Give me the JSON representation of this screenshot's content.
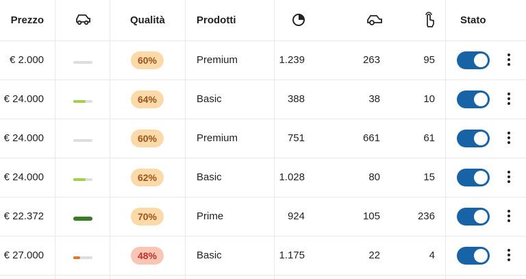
{
  "header": {
    "columns": [
      "Prezzo",
      "Qualità",
      "Prodotti",
      "Stato"
    ]
  },
  "rows": [
    {
      "prezzo": "€ 2.000",
      "bar": 0,
      "bar_color": "#a5cf4c",
      "qualita": "60%",
      "badge_bg": "#fcd9a8",
      "badge_fg": "#9a5418",
      "prodotti": "Premium",
      "c5": "1.239",
      "c6": "263",
      "c7": "95"
    },
    {
      "prezzo": "€ 24.000",
      "bar": 65,
      "bar_color": "#a5cf4c",
      "qualita": "64%",
      "badge_bg": "#fcd9a8",
      "badge_fg": "#9a5418",
      "prodotti": "Basic",
      "c5": "388",
      "c6": "38",
      "c7": "10"
    },
    {
      "prezzo": "€ 24.000",
      "bar": 0,
      "bar_color": "#a5cf4c",
      "qualita": "60%",
      "badge_bg": "#fcd9a8",
      "badge_fg": "#9a5418",
      "prodotti": "Premium",
      "c5": "751",
      "c6": "661",
      "c7": "61"
    },
    {
      "prezzo": "€ 24.000",
      "bar": 65,
      "bar_color": "#a5cf4c",
      "qualita": "62%",
      "badge_bg": "#fcd9a8",
      "badge_fg": "#9a5418",
      "prodotti": "Basic",
      "c5": "1.028",
      "c6": "80",
      "c7": "15"
    },
    {
      "prezzo": "€ 22.372",
      "bar": 100,
      "bar_color": "#3a7a28",
      "qualita": "70%",
      "badge_bg": "#fcd9a8",
      "badge_fg": "#9a5418",
      "prodotti": "Prime",
      "c5": "924",
      "c6": "105",
      "c7": "236"
    },
    {
      "prezzo": "€ 27.000",
      "bar": 35,
      "bar_color": "#e0782a",
      "qualita": "48%",
      "badge_bg": "#f9c6b6",
      "badge_fg": "#c0302a",
      "prodotti": "Basic",
      "c5": "1.175",
      "c6": "22",
      "c7": "4"
    }
  ]
}
